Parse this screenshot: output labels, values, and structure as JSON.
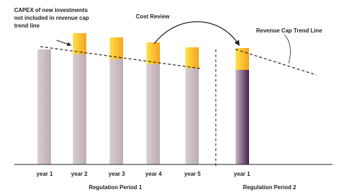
{
  "annotations": {
    "capex": [
      "CAPEX of new investments",
      "not included in revenue cap",
      "trend line"
    ],
    "cost_review": "Cost Review",
    "trend_line": "Revenue Cap Trend Line"
  },
  "periods": [
    {
      "label": "Regulation Period 1",
      "years": [
        "year 1",
        "year 2",
        "year 3",
        "year 4",
        "year 5"
      ]
    },
    {
      "label": "Regulation Period 2",
      "years": [
        "year 1"
      ]
    }
  ]
}
